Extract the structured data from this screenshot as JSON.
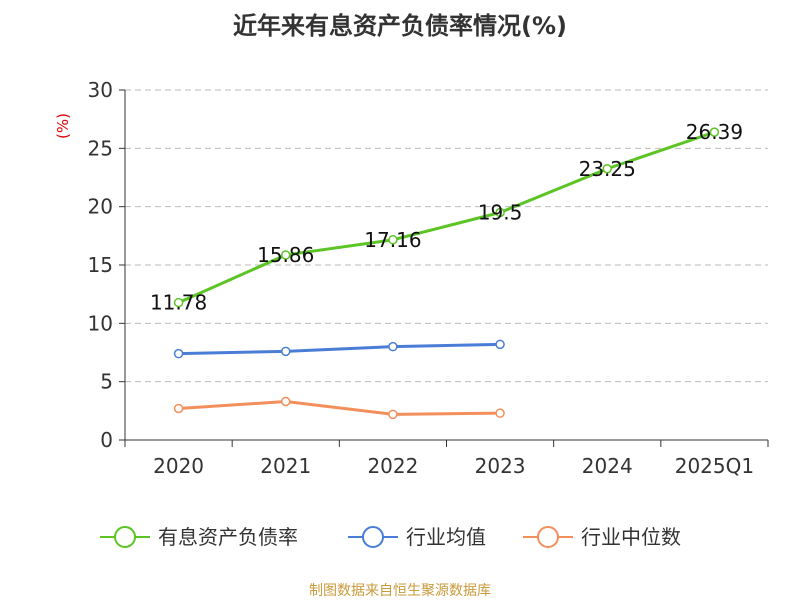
{
  "chart_data": {
    "type": "line",
    "title": "近年来有息资产负债率情况(%)",
    "ylabel": "(%)",
    "categories": [
      "2020",
      "2021",
      "2022",
      "2023",
      "2024",
      "2025Q1"
    ],
    "ylim": [
      0,
      30
    ],
    "yticks": [
      0,
      5,
      10,
      15,
      20,
      25,
      30
    ],
    "grid": true,
    "legend_position": "bottom",
    "series": [
      {
        "name": "有息资产负债率",
        "color": "#5cc425",
        "values": [
          11.78,
          15.86,
          17.16,
          19.5,
          23.25,
          26.39
        ],
        "labels": [
          "11.78",
          "15.86",
          "17.16",
          "19.5",
          "23.25",
          "26.39"
        ],
        "show_labels": true
      },
      {
        "name": "行业均值",
        "color": "#4a7ed6",
        "values": [
          7.4,
          7.6,
          8.0,
          8.2,
          null,
          null
        ],
        "show_labels": false
      },
      {
        "name": "行业中位数",
        "color": "#f28f5b",
        "values": [
          2.7,
          3.3,
          2.2,
          2.3,
          null,
          null
        ],
        "show_labels": false
      }
    ]
  },
  "source_note": "制图数据来自恒生聚源数据库"
}
